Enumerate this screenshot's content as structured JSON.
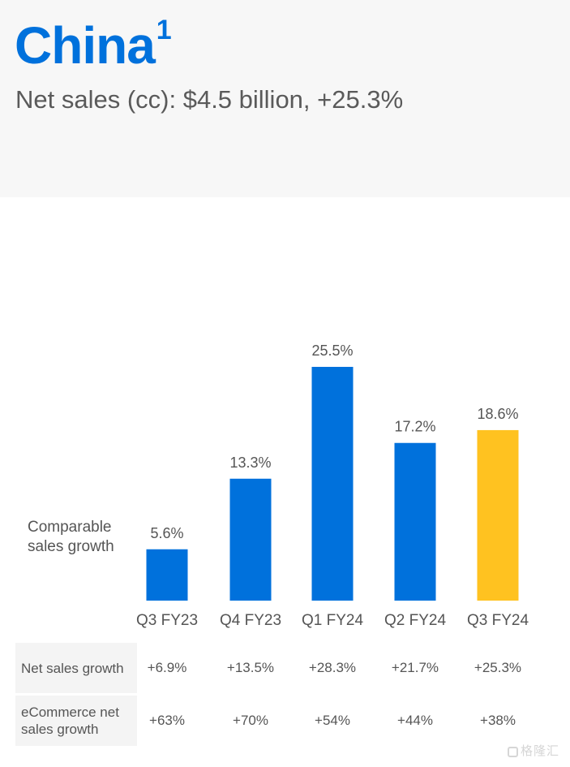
{
  "header": {
    "title": "China",
    "footnote_marker": "1",
    "subtitle": "Net sales (cc): $4.5 billion, +25.3%"
  },
  "colors": {
    "brand_blue": "#0071dc",
    "highlight_yellow": "#ffc220",
    "header_bg": "#f7f7f7"
  },
  "chart_data": {
    "type": "bar",
    "title": "Comparable sales growth",
    "categories": [
      "Q3 FY23",
      "Q4 FY23",
      "Q1 FY24",
      "Q2 FY24",
      "Q3 FY24"
    ],
    "values": [
      5.6,
      13.3,
      25.5,
      17.2,
      18.6
    ],
    "value_labels": [
      "5.6%",
      "13.3%",
      "25.5%",
      "17.2%",
      "18.6%"
    ],
    "highlight_index": 4,
    "unit": "%",
    "ylim": [
      0,
      25.5
    ],
    "grid": false,
    "xlabel": "",
    "ylabel": ""
  },
  "table": {
    "rows": [
      {
        "label": "Net sales growth",
        "values": [
          "+6.9%",
          "+13.5%",
          "+28.3%",
          "+21.7%",
          "+25.3%"
        ]
      },
      {
        "label": "eCommerce net sales growth",
        "values": [
          "+63%",
          "+70%",
          "+54%",
          "+44%",
          "+38%"
        ]
      }
    ]
  },
  "watermark": {
    "text": "格隆汇"
  }
}
